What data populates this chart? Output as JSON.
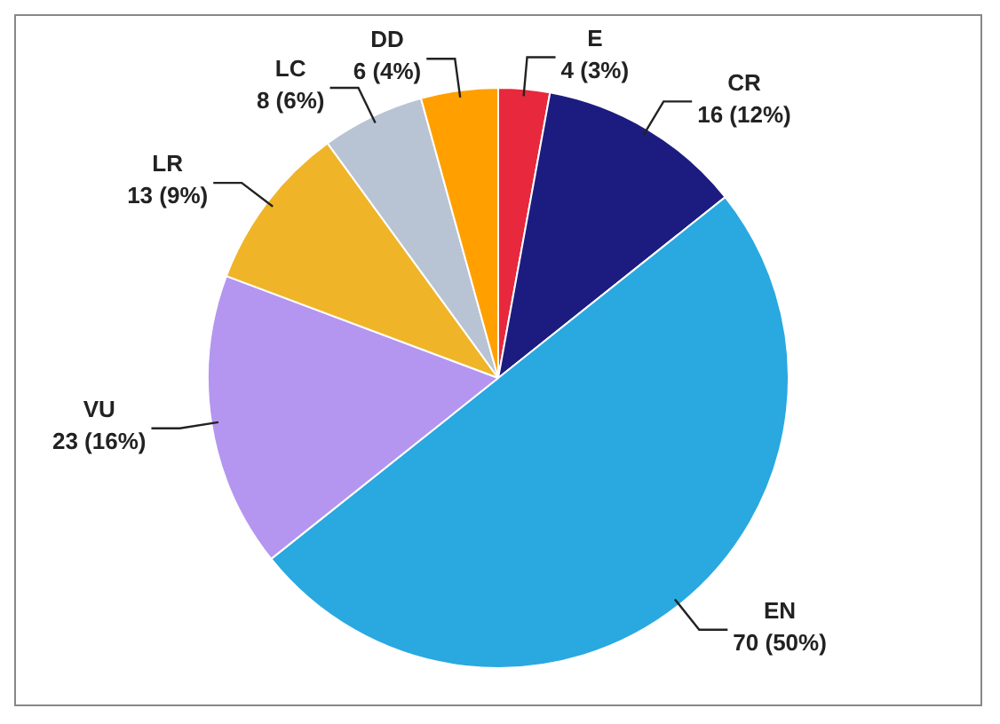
{
  "chart_data": {
    "type": "pie",
    "categories": [
      "E",
      "CR",
      "EN",
      "VU",
      "LR",
      "LC",
      "DD"
    ],
    "values": [
      4,
      16,
      70,
      23,
      13,
      8,
      6
    ],
    "value_labels": [
      "4 (3%)",
      "16 (12%)",
      "70 (50%)",
      "23 (16%)",
      "13 (9%)",
      "8 (6%)",
      "6 (4%)"
    ],
    "colors": [
      "#e8283c",
      "#1c1c80",
      "#2aa8e0",
      "#b496f0",
      "#f0b428",
      "#b8c4d4",
      "#ffa000"
    ],
    "legend": false
  }
}
